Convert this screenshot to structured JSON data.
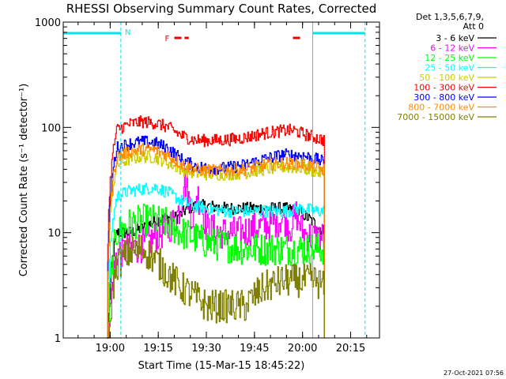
{
  "chart_data": {
    "type": "line",
    "title": "RHESSI Observing Summary Count Rates, Corrected",
    "xlabel": "Start Time (15-Mar-15 18:45:22)",
    "ylabel": "Corrected Count Rate (s⁻¹ detector⁻¹)",
    "y_scale": "log",
    "ylim": [
      1,
      1000
    ],
    "xlim": [
      "18:45:22",
      "20:24:00"
    ],
    "x_ticks": [
      "19:00",
      "19:15",
      "19:30",
      "19:45",
      "20:00",
      "20:15"
    ],
    "y_ticks": [
      "1",
      "10",
      "100",
      "1000"
    ],
    "detector_info": [
      "Det 1,3,5,6,7,9,",
      "Att 0"
    ],
    "legend_position": "right",
    "timestamp": "27-Oct-2021 07:56",
    "markers": {
      "night": {
        "label": "N",
        "color": "#00e5ee",
        "intervals": [
          [
            "18:45:22",
            "19:03:20"
          ],
          [
            "20:03:10",
            "20:19:30"
          ]
        ]
      },
      "flare": {
        "label": "F",
        "color": "#ee0000",
        "intervals": [
          [
            "19:20:00",
            "19:24:30"
          ],
          [
            "19:57:00",
            "20:00:00"
          ]
        ]
      }
    },
    "series": [
      {
        "name": "3 - 6 keV",
        "color": "#000000",
        "x": [
          "18:59",
          "19:02",
          "19:06",
          "19:10",
          "19:14",
          "19:18",
          "19:21",
          "19:24",
          "19:27",
          "19:30",
          "19:36",
          "19:42",
          "19:48",
          "19:54",
          "19:58",
          "20:00",
          "20:04",
          "20:07"
        ],
        "values": [
          0,
          10,
          10,
          11,
          13,
          14,
          14,
          17,
          18,
          18,
          17,
          17,
          17,
          17,
          16,
          15,
          12,
          10
        ]
      },
      {
        "name": "6 - 12 keV",
        "color": "#ff00ff",
        "x": [
          "18:59",
          "19:02",
          "19:06",
          "19:10",
          "19:14",
          "19:18",
          "19:20",
          "19:22",
          "19:23",
          "19:25",
          "19:26",
          "19:27",
          "19:29",
          "19:30",
          "19:35",
          "19:40",
          "19:45",
          "19:50",
          "19:54",
          "19:56",
          "19:58",
          "20:00",
          "20:03",
          "20:07"
        ],
        "values": [
          0,
          6.5,
          7,
          7.5,
          9,
          11,
          13,
          18,
          33,
          16,
          13,
          24,
          15,
          11,
          10,
          10,
          11,
          12,
          14,
          11,
          15,
          10,
          9,
          9
        ]
      },
      {
        "name": "12 - 25 keV",
        "color": "#00ff00",
        "x": [
          "18:59",
          "19:02",
          "19:06",
          "19:10",
          "19:14",
          "19:18",
          "19:22",
          "19:26",
          "19:30",
          "19:36",
          "19:42",
          "19:48",
          "19:54",
          "20:00",
          "20:04",
          "20:07"
        ],
        "values": [
          0,
          10,
          12,
          13,
          13,
          12,
          10,
          9,
          8,
          7.5,
          7,
          7,
          7,
          7,
          7,
          7
        ]
      },
      {
        "name": "25 - 50 keV",
        "color": "#00ffff",
        "x": [
          "18:59",
          "19:02",
          "19:06",
          "19:10",
          "19:14",
          "19:18",
          "19:22",
          "19:26",
          "19:30",
          "19:36",
          "19:42",
          "19:48",
          "19:54",
          "20:00",
          "20:04",
          "20:07"
        ],
        "values": [
          0,
          22,
          25,
          26,
          27,
          24,
          20,
          18,
          17,
          16,
          16,
          16,
          16,
          17,
          16,
          16
        ]
      },
      {
        "name": "50 - 100 keV",
        "color": "#cccc00",
        "x": [
          "18:59",
          "19:02",
          "19:06",
          "19:10",
          "19:14",
          "19:18",
          "19:22",
          "19:26",
          "19:30",
          "19:36",
          "19:42",
          "19:48",
          "19:54",
          "20:00",
          "20:04",
          "20:07"
        ],
        "values": [
          0,
          44,
          50,
          53,
          52,
          46,
          40,
          37,
          36,
          36,
          37,
          40,
          42,
          41,
          38,
          36
        ]
      },
      {
        "name": "100 - 300 keV",
        "color": "#ff0000",
        "x": [
          "18:59",
          "19:02",
          "19:06",
          "19:10",
          "19:14",
          "19:18",
          "19:22",
          "19:26",
          "19:30",
          "19:36",
          "19:42",
          "19:48",
          "19:54",
          "19:57",
          "20:00",
          "20:04",
          "20:07"
        ],
        "values": [
          0,
          95,
          108,
          113,
          110,
          100,
          84,
          76,
          75,
          76,
          80,
          88,
          93,
          94,
          87,
          80,
          75
        ]
      },
      {
        "name": "300 - 800 keV",
        "color": "#0000ff",
        "x": [
          "18:59",
          "19:02",
          "19:06",
          "19:10",
          "19:14",
          "19:18",
          "19:22",
          "19:26",
          "19:30",
          "19:36",
          "19:42",
          "19:48",
          "19:54",
          "20:00",
          "20:04",
          "20:07"
        ],
        "values": [
          0,
          64,
          70,
          73,
          71,
          63,
          50,
          43,
          41,
          41,
          44,
          50,
          55,
          54,
          50,
          46
        ]
      },
      {
        "name": "800 - 7000 keV",
        "color": "#ff8c00",
        "x": [
          "18:59",
          "19:02",
          "19:06",
          "19:10",
          "19:14",
          "19:18",
          "19:22",
          "19:26",
          "19:30",
          "19:36",
          "19:42",
          "19:48",
          "19:54",
          "20:00",
          "20:04",
          "20:07"
        ],
        "values": [
          0,
          52,
          59,
          62,
          61,
          54,
          45,
          40,
          39,
          39,
          40,
          44,
          46,
          45,
          42,
          39
        ]
      },
      {
        "name": "7000 - 15000 keV",
        "color": "#808000",
        "x": [
          "18:59",
          "19:02",
          "19:06",
          "19:10",
          "19:14",
          "19:18",
          "19:22",
          "19:26",
          "19:30",
          "19:36",
          "19:42",
          "19:48",
          "19:54",
          "20:00",
          "20:04",
          "20:07"
        ],
        "values": [
          0,
          5,
          6.5,
          7,
          5.5,
          4,
          3,
          2.5,
          2,
          2,
          2,
          3,
          3.5,
          3.5,
          3.5,
          3
        ]
      }
    ]
  }
}
